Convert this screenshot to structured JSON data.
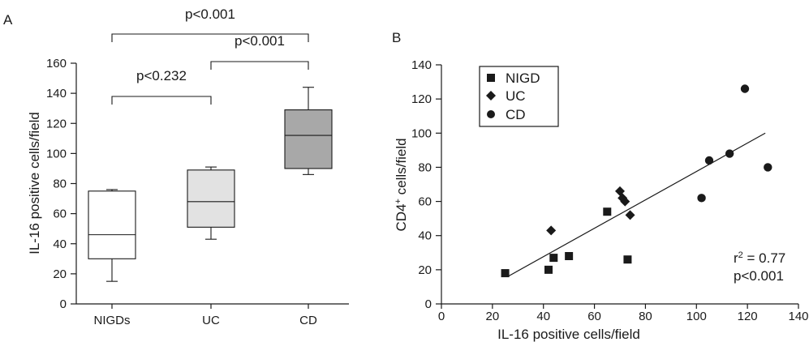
{
  "chart_data": [
    {
      "panel_label": "A",
      "type": "box",
      "ylabel": "IL-16 positive cells/field",
      "ylim": [
        0,
        160
      ],
      "yticks": [
        0,
        20,
        40,
        60,
        80,
        100,
        120,
        140,
        160
      ],
      "categories": [
        "NIGDs",
        "UC",
        "CD"
      ],
      "colors": [
        "#ffffff",
        "#e2e2e2",
        "#a8a8a8"
      ],
      "boxes": [
        {
          "category": "NIGDs",
          "min": 15,
          "q1": 30,
          "median": 46,
          "q3": 75,
          "max": 76
        },
        {
          "category": "UC",
          "min": 43,
          "q1": 51,
          "median": 68,
          "q3": 89,
          "max": 91
        },
        {
          "category": "CD",
          "min": 86,
          "q1": 90,
          "median": 112,
          "q3": 129,
          "max": 144
        }
      ],
      "significance": [
        {
          "from": "NIGDs",
          "to": "UC",
          "label": "p<0.232"
        },
        {
          "from": "UC",
          "to": "CD",
          "label": "p<0.001"
        },
        {
          "from": "NIGDs",
          "to": "CD",
          "label": "p<0.001"
        }
      ]
    },
    {
      "panel_label": "B",
      "type": "scatter",
      "xlabel": "IL-16 positive cells/field",
      "ylabel_main": "CD4",
      "ylabel_sup": "+",
      "ylabel_rest": " cells/field",
      "xlim": [
        0,
        140
      ],
      "ylim": [
        0,
        140
      ],
      "xticks": [
        0,
        20,
        40,
        60,
        80,
        100,
        120,
        140
      ],
      "yticks": [
        0,
        20,
        40,
        60,
        80,
        100,
        120,
        140
      ],
      "legend_position": "top-left",
      "series": [
        {
          "name": "NIGD",
          "marker": "square",
          "points": [
            [
              25,
              18
            ],
            [
              42,
              20
            ],
            [
              44,
              27
            ],
            [
              50,
              28
            ],
            [
              65,
              54
            ],
            [
              73,
              26
            ]
          ]
        },
        {
          "name": "UC",
          "marker": "diamond",
          "points": [
            [
              43,
              43
            ],
            [
              70,
              66
            ],
            [
              71,
              62
            ],
            [
              72,
              60
            ],
            [
              74,
              52
            ]
          ]
        },
        {
          "name": "CD",
          "marker": "circle",
          "points": [
            [
              102,
              62
            ],
            [
              105,
              84
            ],
            [
              113,
              88
            ],
            [
              119,
              126
            ],
            [
              128,
              80
            ]
          ]
        }
      ],
      "regression": {
        "x": [
          26,
          127
        ],
        "y": [
          16,
          100
        ]
      },
      "annotation": {
        "r2_main": "r",
        "r2_sup": "2",
        "r2_rest": " = 0.77",
        "p": "p<0.001"
      }
    }
  ]
}
